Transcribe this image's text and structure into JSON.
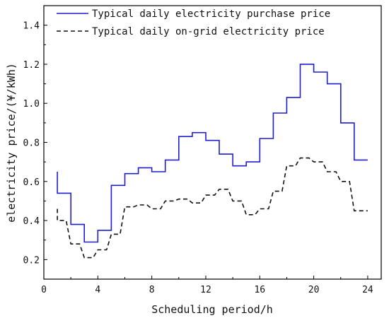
{
  "chart_data": {
    "type": "line",
    "title": "",
    "xlabel": "Scheduling period/h",
    "ylabel": "electricity price/(¥/kWh)",
    "xlim": [
      0,
      25
    ],
    "ylim": [
      0.1,
      1.5
    ],
    "xticks": [
      0,
      4,
      8,
      12,
      16,
      20,
      24
    ],
    "yticks": [
      0.2,
      0.4,
      0.6,
      0.8,
      1.0,
      1.2,
      1.4
    ],
    "ytick_labels": [
      "0.2",
      "0.4",
      "0.6",
      "0.8",
      "1.0",
      "1.2",
      "1.4"
    ],
    "grid": false,
    "legend_position": "top-right",
    "series": [
      {
        "name": "Typical daily electricity purchase price",
        "style": "solid",
        "color": "#1f1fd0",
        "step": "post",
        "start_value": 0.65,
        "x": [
          1,
          2,
          3,
          4,
          5,
          6,
          7,
          8,
          9,
          10,
          11,
          12,
          13,
          14,
          15,
          16,
          17,
          18,
          19,
          20,
          21,
          22,
          23,
          24
        ],
        "values": [
          0.54,
          0.38,
          0.29,
          0.35,
          0.58,
          0.64,
          0.67,
          0.65,
          0.71,
          0.83,
          0.85,
          0.81,
          0.74,
          0.68,
          0.7,
          0.82,
          0.95,
          1.03,
          1.2,
          1.16,
          1.1,
          0.9,
          0.71,
          0.71
        ]
      },
      {
        "name": "Typical daily on-grid electricity price",
        "style": "dashed",
        "color": "#111111",
        "step": "post-sloped",
        "start_value": 0.46,
        "x": [
          1,
          2,
          3,
          4,
          5,
          6,
          7,
          8,
          9,
          10,
          11,
          12,
          13,
          14,
          15,
          16,
          17,
          18,
          19,
          20,
          21,
          22,
          23,
          24
        ],
        "values": [
          0.4,
          0.28,
          0.21,
          0.25,
          0.33,
          0.47,
          0.48,
          0.46,
          0.5,
          0.51,
          0.49,
          0.53,
          0.56,
          0.5,
          0.43,
          0.46,
          0.55,
          0.68,
          0.72,
          0.7,
          0.65,
          0.6,
          0.45,
          0.45
        ]
      }
    ]
  }
}
